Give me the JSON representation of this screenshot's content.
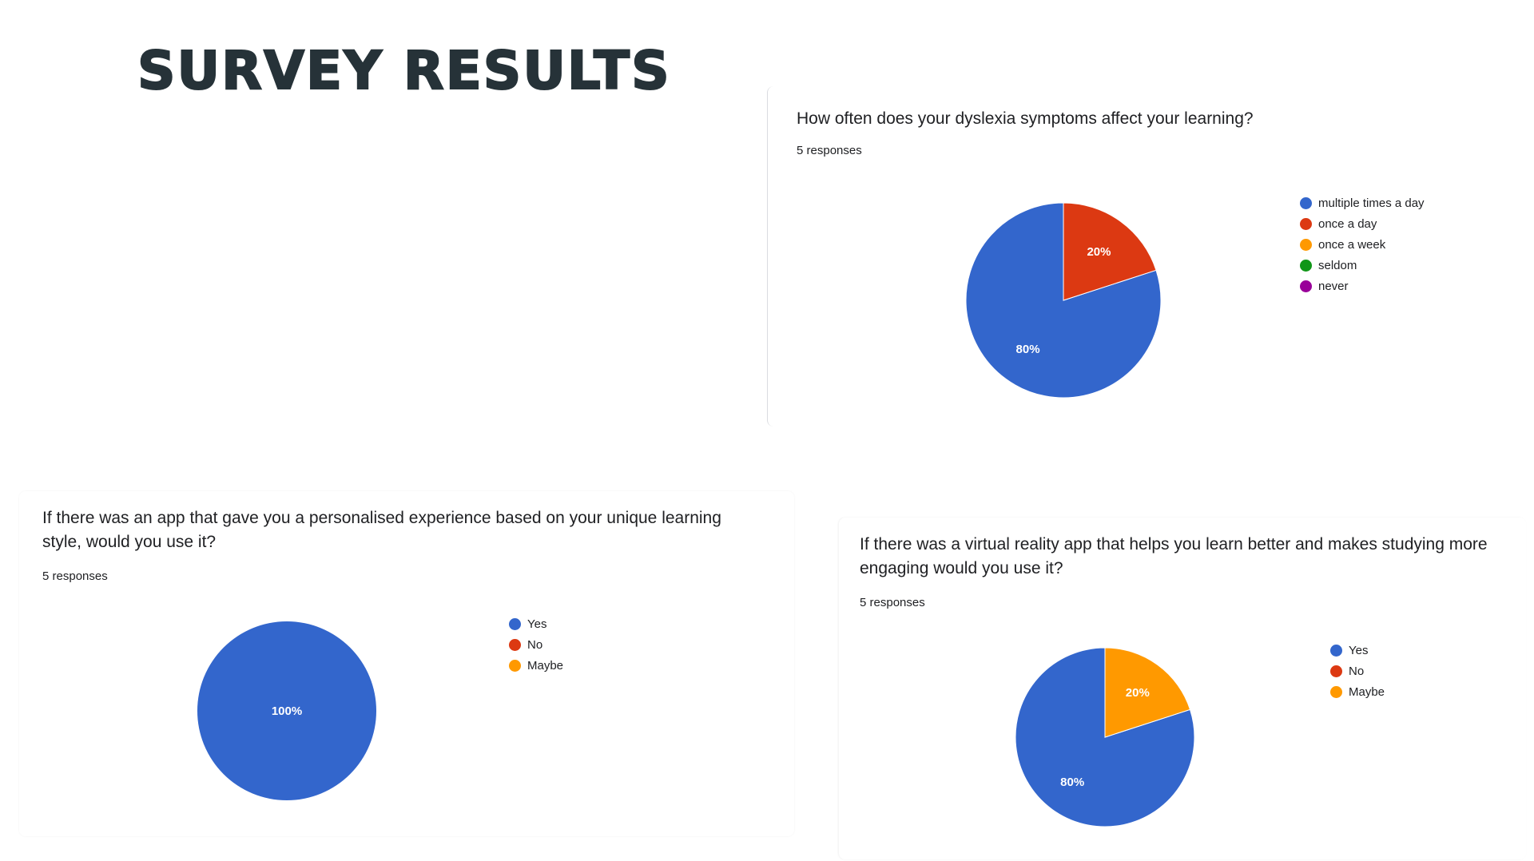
{
  "page": {
    "title": "SURVEY RESULTS"
  },
  "palette": {
    "blue": "#3366cc",
    "red": "#dc3912",
    "orange": "#ff9900",
    "green": "#109618",
    "purple": "#990099"
  },
  "chart_data": [
    {
      "type": "pie",
      "title": "How often does your dyslexia symptoms affect your learning?",
      "subtitle": "5 responses",
      "legend_position": "right",
      "categories": [
        "multiple times a day",
        "once a day",
        "once a week",
        "seldom",
        "never"
      ],
      "colors": [
        "#3366cc",
        "#dc3912",
        "#ff9900",
        "#109618",
        "#990099"
      ],
      "values": [
        80,
        20,
        0,
        0,
        0
      ],
      "data_labels": [
        "80%",
        "20%",
        "",
        "",
        ""
      ]
    },
    {
      "type": "pie",
      "title": "If there was an app that gave you a personalised experience based on your unique learning style, would you use it?",
      "subtitle": "5 responses",
      "legend_position": "right",
      "categories": [
        "Yes",
        "No",
        "Maybe"
      ],
      "colors": [
        "#3366cc",
        "#dc3912",
        "#ff9900"
      ],
      "values": [
        100,
        0,
        0
      ],
      "data_labels": [
        "100%",
        "",
        ""
      ]
    },
    {
      "type": "pie",
      "title": "If there was a virtual reality app that helps you learn better and makes studying more engaging would you use it?",
      "subtitle": "5 responses",
      "legend_position": "right",
      "categories": [
        "Yes",
        "No",
        "Maybe"
      ],
      "colors": [
        "#3366cc",
        "#dc3912",
        "#ff9900"
      ],
      "values": [
        80,
        0,
        20
      ],
      "data_labels": [
        "80%",
        "",
        "20%"
      ]
    }
  ]
}
